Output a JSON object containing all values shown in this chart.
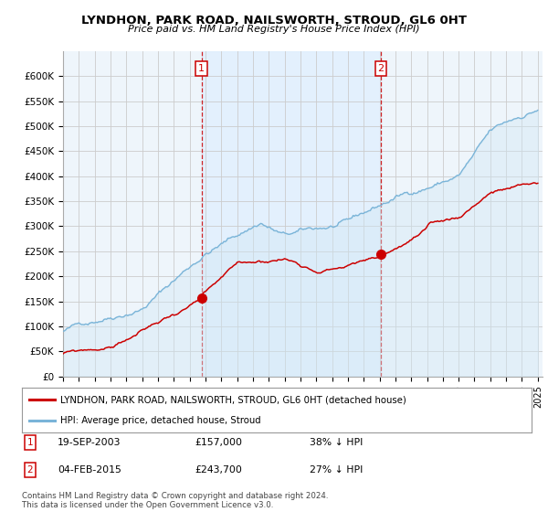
{
  "title": "LYNDHON, PARK ROAD, NAILSWORTH, STROUD, GL6 0HT",
  "subtitle": "Price paid vs. HM Land Registry's House Price Index (HPI)",
  "ylabel_ticks": [
    "£0",
    "£50K",
    "£100K",
    "£150K",
    "£200K",
    "£250K",
    "£300K",
    "£350K",
    "£400K",
    "£450K",
    "£500K",
    "£550K",
    "£600K"
  ],
  "ytick_values": [
    0,
    50000,
    100000,
    150000,
    200000,
    250000,
    300000,
    350000,
    400000,
    450000,
    500000,
    550000,
    600000
  ],
  "ylim": [
    0,
    650000
  ],
  "legend_line1": "LYNDHON, PARK ROAD, NAILSWORTH, STROUD, GL6 0HT (detached house)",
  "legend_line2": "HPI: Average price, detached house, Stroud",
  "sale1_date": "19-SEP-2003",
  "sale1_price": "£157,000",
  "sale1_info": "38% ↓ HPI",
  "sale2_date": "04-FEB-2015",
  "sale2_price": "£243,700",
  "sale2_info": "27% ↓ HPI",
  "footnote": "Contains HM Land Registry data © Crown copyright and database right 2024.\nThis data is licensed under the Open Government Licence v3.0.",
  "hpi_color": "#7ab4d8",
  "hpi_fill_color": "#d0e8f5",
  "price_color": "#cc0000",
  "vline_color": "#cc0000",
  "background_color": "#ffffff",
  "grid_color": "#cccccc",
  "shade_color": "#ddeeff",
  "chart_bg": "#eef5fb"
}
